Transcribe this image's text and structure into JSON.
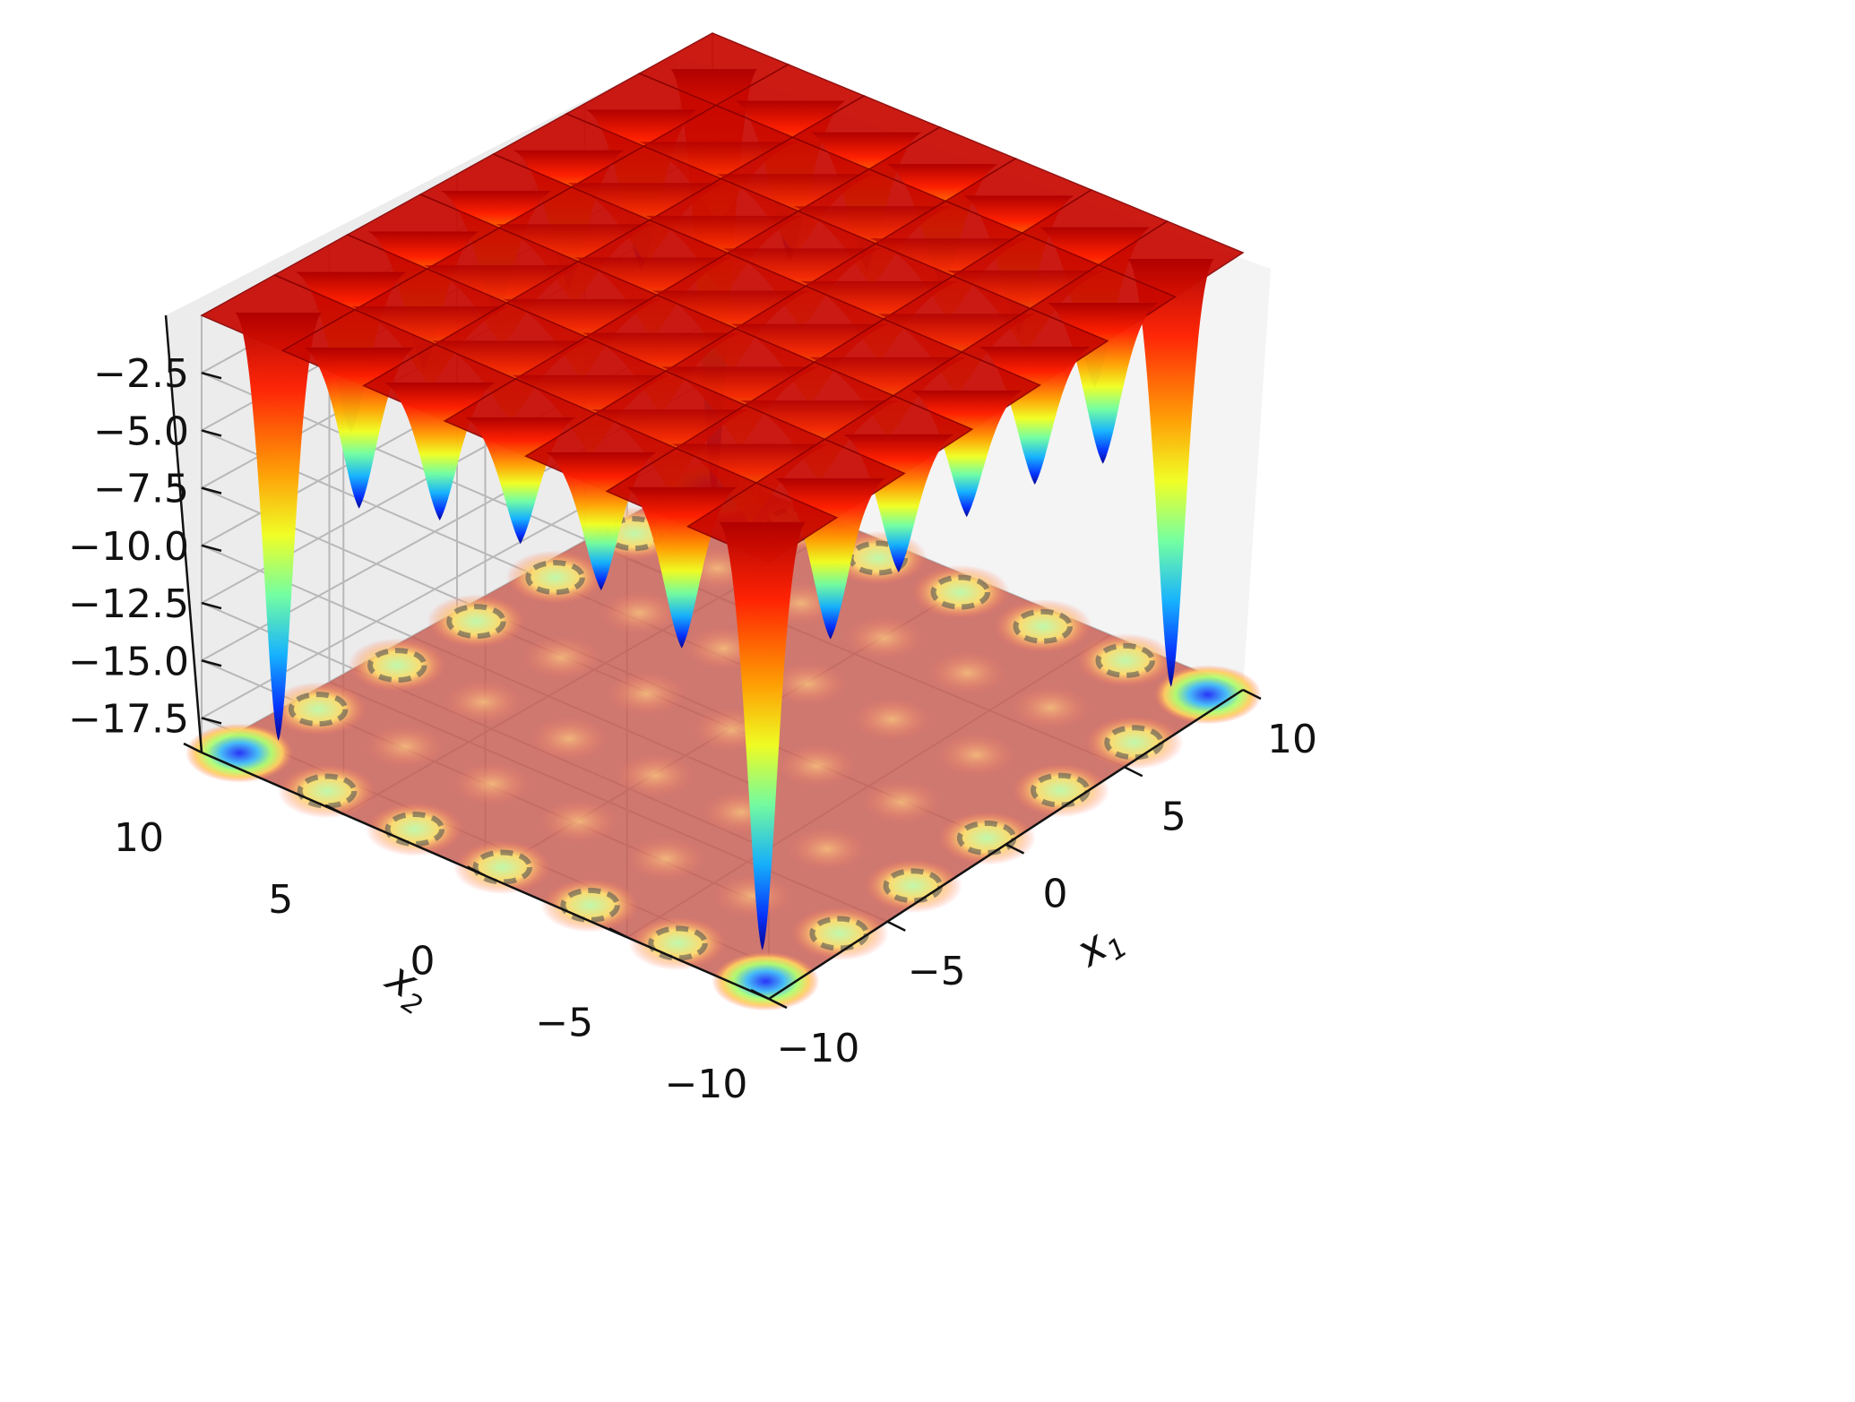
{
  "chart_data": {
    "type": "surface3d",
    "title": "",
    "xlabel": "x",
    "xlabel_sub": "1",
    "ylabel": "x",
    "ylabel_sub": "2",
    "zlabel": "",
    "x_ticks": [
      "−10",
      "−5",
      "0",
      "5",
      "10"
    ],
    "y_ticks": [
      "−10",
      "−5",
      "0",
      "5",
      "10"
    ],
    "z_ticks": [
      "−2.5",
      "−5.0",
      "−7.5",
      "−10.0",
      "−12.5",
      "−15.0",
      "−17.5"
    ],
    "xlim": [
      -10,
      10
    ],
    "ylim": [
      -10,
      10
    ],
    "zlim": [
      -19,
      0
    ],
    "grid": true,
    "colormap": "jet",
    "contour_projection": "bottom",
    "minima_depth": [
      {
        "x": -10,
        "y": -10,
        "z": -18.6
      },
      {
        "x": -10,
        "y": 10,
        "z": -18.6
      },
      {
        "x": 10,
        "y": -10,
        "z": -18.6
      },
      {
        "x": 10,
        "y": 10,
        "z": -18.6
      }
    ],
    "surface_top_z": 0,
    "edge_wells_z": [
      -9.0,
      -7.0,
      -6.0,
      -5.5,
      -6.0,
      -7.0,
      -9.0
    ],
    "colors": {
      "pane": "#f2f2f2",
      "grid": "#b0b0b0",
      "surface_top": "#b00000",
      "contour_base": "#c65a50"
    }
  }
}
